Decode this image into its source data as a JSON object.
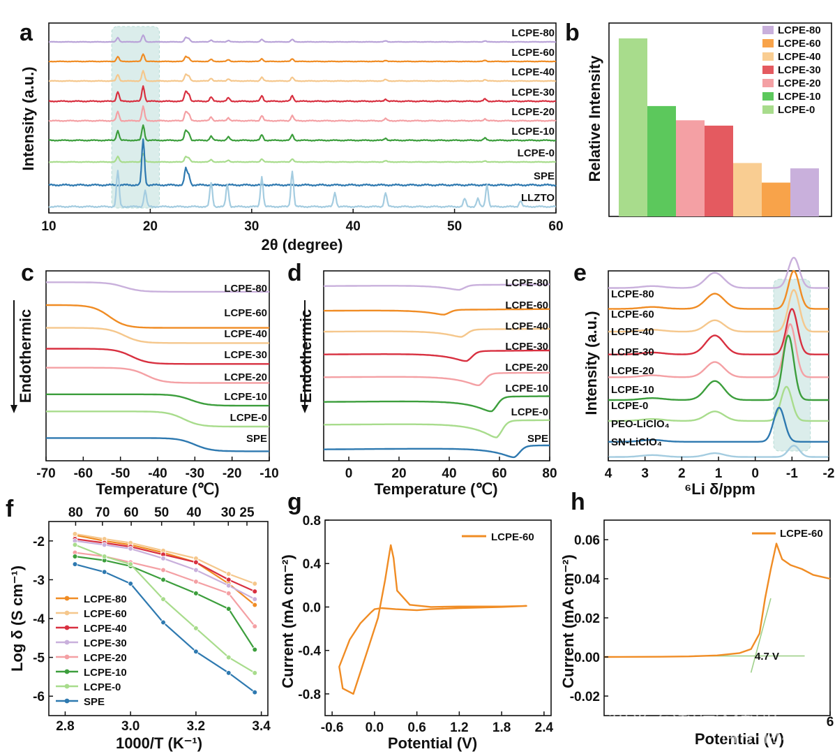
{
  "chart_data": [
    {
      "panel": "a",
      "type": "line",
      "xlabel": "2θ (degree)",
      "ylabel": "Intensity (a.u.)",
      "xlim": [
        10,
        60
      ],
      "xticks": [
        "10",
        "20",
        "30",
        "40",
        "50",
        "60"
      ],
      "highlight_range": [
        16.2,
        20.9
      ],
      "series": [
        {
          "name": "LCPE-80",
          "color": "#b9a3d8"
        },
        {
          "name": "LCPE-60",
          "color": "#f08c24"
        },
        {
          "name": "LCPE-40",
          "color": "#f5c78c"
        },
        {
          "name": "LCPE-30",
          "color": "#d83040"
        },
        {
          "name": "LCPE-20",
          "color": "#f4a0a4"
        },
        {
          "name": "LCPE-10",
          "color": "#3c9e3c"
        },
        {
          "name": "LCPE-0",
          "color": "#a8dc8c"
        },
        {
          "name": "SPE",
          "color": "#2e79b0"
        },
        {
          "name": "LLZTO",
          "color": "#a4cce0"
        }
      ]
    },
    {
      "panel": "b",
      "type": "bar",
      "ylabel": "Relative Intensity",
      "categories": [
        "LCPE-0",
        "LCPE-10",
        "LCPE-20",
        "LCPE-30",
        "LCPE-40",
        "LCPE-60",
        "LCPE-80"
      ],
      "values": [
        100,
        62,
        54,
        51,
        30,
        19,
        27
      ],
      "colors": [
        "#a8dc8c",
        "#5cc85c",
        "#f4a0a4",
        "#e45a60",
        "#f9cd92",
        "#f8a34a",
        "#c9b0dc"
      ],
      "legend": [
        "LCPE-80",
        "LCPE-60",
        "LCPE-40",
        "LCPE-30",
        "LCPE-20",
        "LCPE-10",
        "LCPE-0"
      ],
      "legend_colors": [
        "#c9b0dc",
        "#f8a34a",
        "#f9cd92",
        "#e45a60",
        "#f4a0a4",
        "#5cc85c",
        "#a8dc8c"
      ]
    },
    {
      "panel": "c",
      "type": "line",
      "xlabel": "Temperature (℃)",
      "ylabel": "Endothermic",
      "xlim": [
        -70,
        -10
      ],
      "xticks": [
        "-70",
        "-60",
        "-50",
        "-40",
        "-30",
        "-20",
        "-10"
      ],
      "series": [
        {
          "name": "LCPE-80",
          "color": "#c9b0dc",
          "offset": 0.94,
          "tg": -49,
          "step": -0.05
        },
        {
          "name": "LCPE-60",
          "color": "#f08c24",
          "offset": 0.82,
          "tg": -53,
          "step": -0.12
        },
        {
          "name": "LCPE-40",
          "color": "#f5c78c",
          "offset": 0.7,
          "tg": -49,
          "step": -0.08
        },
        {
          "name": "LCPE-30",
          "color": "#d83040",
          "offset": 0.59,
          "tg": -47,
          "step": -0.08
        },
        {
          "name": "LCPE-20",
          "color": "#f4a0a4",
          "offset": 0.49,
          "tg": -43,
          "step": -0.08
        },
        {
          "name": "LCPE-10",
          "color": "#3c9e3c",
          "offset": 0.35,
          "tg": -31,
          "step": -0.06
        },
        {
          "name": "LCPE-0",
          "color": "#a8dc8c",
          "offset": 0.26,
          "tg": -33,
          "step": -0.08
        },
        {
          "name": "SPE",
          "color": "#2e79b0",
          "offset": 0.12,
          "tg": -30,
          "step": -0.07
        }
      ]
    },
    {
      "panel": "d",
      "type": "line",
      "xlabel": "Temperature (℃)",
      "ylabel": "Endothermic",
      "xlim": [
        -10,
        80
      ],
      "xticks": [
        "0",
        "20",
        "40",
        "60",
        "80"
      ],
      "series": [
        {
          "name": "LCPE-80",
          "color": "#c9b0dc",
          "offset": 0.92,
          "dip": 44,
          "depth": 0.03,
          "step": 0.0
        },
        {
          "name": "LCPE-60",
          "color": "#f08c24",
          "offset": 0.79,
          "dip": 38,
          "depth": 0.03,
          "step": 0.0
        },
        {
          "name": "LCPE-40",
          "color": "#f5c78c",
          "offset": 0.68,
          "dip": 45,
          "depth": 0.04,
          "step": 0.02
        },
        {
          "name": "LCPE-30",
          "color": "#d83040",
          "offset": 0.56,
          "dip": 47,
          "depth": 0.05,
          "step": 0.04
        },
        {
          "name": "LCPE-20",
          "color": "#f4a0a4",
          "offset": 0.44,
          "dip": 52,
          "depth": 0.06,
          "step": 0.05
        },
        {
          "name": "LCPE-10",
          "color": "#3c9e3c",
          "offset": 0.31,
          "dip": 57,
          "depth": 0.07,
          "step": 0.07
        },
        {
          "name": "LCPE-0",
          "color": "#a8dc8c",
          "offset": 0.19,
          "dip": 59,
          "depth": 0.09,
          "step": 0.05
        },
        {
          "name": "SPE",
          "color": "#2e79b0",
          "offset": 0.06,
          "dip": 66,
          "depth": 0.06,
          "step": 0.04
        }
      ]
    },
    {
      "panel": "e",
      "type": "line",
      "xlabel": "⁶Li δ/ppm",
      "ylabel": "Intensity (a.u.)",
      "xlim": [
        4,
        -2
      ],
      "xticks": [
        "4",
        "3",
        "2",
        "1",
        "0",
        "-1",
        "-2"
      ],
      "highlight_range": [
        -0.5,
        -1.5
      ],
      "series": [
        {
          "name": "LCPE-80",
          "color": "#c9b0dc",
          "offset": 0.91,
          "p1": 0.08,
          "p2": 0.16,
          "peak": -1.05
        },
        {
          "name": "LCPE-60",
          "color": "#f08c24",
          "offset": 0.8,
          "p1": 0.08,
          "p2": 0.2,
          "peak": -1.05
        },
        {
          "name": "LCPE-40",
          "color": "#f5c78c",
          "offset": 0.68,
          "p1": 0.06,
          "p2": 0.22,
          "peak": -1.05
        },
        {
          "name": "LCPE-30",
          "color": "#d83040",
          "offset": 0.56,
          "p1": 0.1,
          "p2": 0.24,
          "peak": -1.0
        },
        {
          "name": "LCPE-20",
          "color": "#f4a0a4",
          "offset": 0.44,
          "p1": 0.08,
          "p2": 0.28,
          "peak": -0.95
        },
        {
          "name": "LCPE-10",
          "color": "#3c9e3c",
          "offset": 0.32,
          "p1": 0.1,
          "p2": 0.34,
          "peak": -0.9
        },
        {
          "name": "LCPE-0",
          "color": "#a8dc8c",
          "offset": 0.21,
          "p1": 0.05,
          "p2": 0.18,
          "peak": -0.85
        },
        {
          "name": "PEO-LiClO₄",
          "color": "#2e79b0",
          "offset": 0.1,
          "p1": 0.0,
          "p2": 0.18,
          "peak": -0.65
        },
        {
          "name": "SN-LiClO₄",
          "color": "#a4cce0",
          "offset": 0.02,
          "p1": 0.02,
          "p2": 0.06,
          "peak": -1.05
        }
      ]
    },
    {
      "panel": "f",
      "type": "line",
      "xlabel": "1000/T (K⁻¹)",
      "ylabel": "Log δ (S cm⁻¹)",
      "xlim": [
        2.75,
        3.42
      ],
      "ylim": [
        -6.5,
        -1.5
      ],
      "xticks": [
        "2.8",
        "3.0",
        "3.2",
        "3.4"
      ],
      "yticks": [
        "-2",
        "-3",
        "-4",
        "-5",
        "-6"
      ],
      "top_ticks": [
        "80",
        "70",
        "60",
        "50",
        "40",
        "30",
        "25"
      ],
      "top_ticks_x": [
        2.832,
        2.914,
        3.002,
        3.095,
        3.194,
        3.299,
        3.356
      ],
      "x": [
        2.83,
        2.92,
        3.0,
        3.1,
        3.2,
        3.3,
        3.38
      ],
      "series": [
        {
          "name": "LCPE-80",
          "color": "#f08c24",
          "values": [
            -1.85,
            -2.0,
            -2.1,
            -2.3,
            -2.55,
            -3.1,
            -3.65
          ]
        },
        {
          "name": "LCPE-60",
          "color": "#f5c78c",
          "values": [
            -1.82,
            -1.95,
            -2.05,
            -2.25,
            -2.45,
            -2.85,
            -3.1
          ]
        },
        {
          "name": "LCPE-40",
          "color": "#d83040",
          "values": [
            -1.95,
            -2.05,
            -2.15,
            -2.35,
            -2.55,
            -3.0,
            -3.3
          ]
        },
        {
          "name": "LCPE-30",
          "color": "#c9b0dc",
          "values": [
            -2.0,
            -2.1,
            -2.2,
            -2.45,
            -2.75,
            -3.15,
            -3.5
          ]
        },
        {
          "name": "LCPE-20",
          "color": "#f4a0a4",
          "values": [
            -2.3,
            -2.4,
            -2.55,
            -2.75,
            -3.05,
            -3.35,
            -4.2
          ]
        },
        {
          "name": "LCPE-10",
          "color": "#3c9e3c",
          "values": [
            -2.4,
            -2.5,
            -2.65,
            -3.0,
            -3.35,
            -3.75,
            -4.8
          ]
        },
        {
          "name": "LCPE-0",
          "color": "#a8dc8c",
          "values": [
            -2.1,
            -2.4,
            -2.6,
            -3.5,
            -4.25,
            -5.0,
            -5.4
          ]
        },
        {
          "name": "SPE",
          "color": "#2e79b0",
          "values": [
            -2.6,
            -2.8,
            -3.1,
            -4.1,
            -4.85,
            -5.4,
            -5.9
          ]
        }
      ]
    },
    {
      "panel": "g",
      "type": "line",
      "xlabel": "Potential (V)",
      "ylabel": "Current (mA cm⁻²)",
      "xlim": [
        -0.7,
        2.5
      ],
      "ylim": [
        -1.0,
        0.8
      ],
      "xticks": [
        "-0.6",
        "0.0",
        "0.6",
        "1.2",
        "1.8",
        "2.4"
      ],
      "yticks": [
        "0.8",
        "0.4",
        "0.0",
        "-0.4",
        "-0.8"
      ],
      "series": [
        {
          "name": "LCPE-60",
          "color": "#f08c24",
          "x": [
            -0.05,
            -0.2,
            -0.35,
            -0.5,
            -0.45,
            -0.3,
            -0.1,
            0.05,
            0.15,
            0.2,
            0.23,
            0.27,
            0.32,
            0.5,
            0.8,
            1.2,
            1.8,
            2.15,
            1.8,
            1.2,
            0.8,
            0.6,
            0.3,
            0.1,
            0.0,
            -0.05
          ],
          "values": [
            -0.05,
            -0.15,
            -0.3,
            -0.55,
            -0.75,
            -0.8,
            -0.4,
            -0.1,
            0.25,
            0.45,
            0.57,
            0.45,
            0.15,
            0.02,
            0.0,
            0.005,
            0.005,
            0.01,
            0.0,
            -0.01,
            -0.02,
            -0.03,
            -0.02,
            -0.01,
            -0.02,
            -0.05
          ]
        }
      ]
    },
    {
      "panel": "h",
      "type": "line",
      "xlabel": "Potential (V)",
      "ylabel": "Current (mA cm⁻²)",
      "xlim": [
        2,
        6
      ],
      "ylim": [
        -0.03,
        0.07
      ],
      "xticks": [
        "6"
      ],
      "yticks": [
        "0.06",
        "0.04",
        "0.02",
        "0.00",
        "-0.02"
      ],
      "annotation": "4.7 V",
      "series": [
        {
          "name": "LCPE-60",
          "color": "#f08c24",
          "x": [
            2.0,
            3.0,
            3.5,
            4.0,
            4.4,
            4.6,
            4.75,
            4.85,
            4.95,
            5.05,
            5.15,
            5.3,
            5.5,
            5.7,
            6.0
          ],
          "values": [
            0.0,
            0.0001,
            0.0003,
            0.0008,
            0.002,
            0.004,
            0.012,
            0.03,
            0.045,
            0.058,
            0.05,
            0.047,
            0.045,
            0.042,
            0.04
          ]
        }
      ]
    }
  ],
  "panel_letters": [
    "a",
    "b",
    "c",
    "d",
    "e",
    "f",
    "g",
    "h"
  ],
  "watermark": "知乎 @科学材料站",
  "watermark2": "科学材料站"
}
